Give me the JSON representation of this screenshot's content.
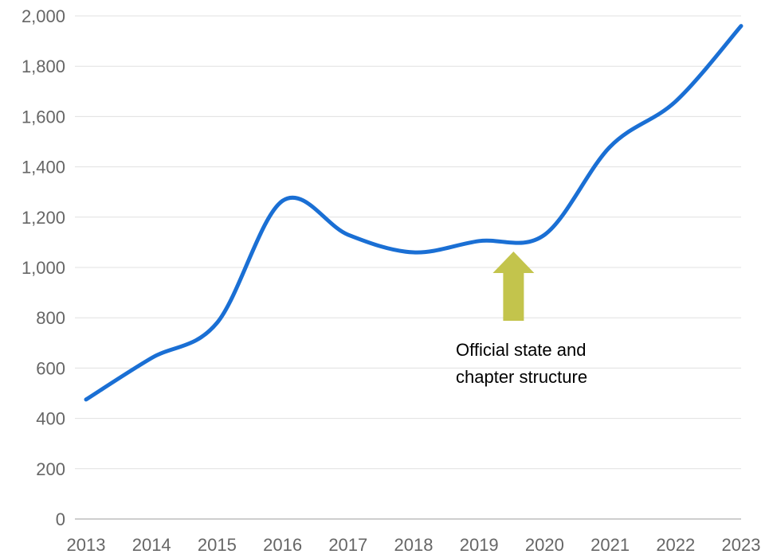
{
  "chart_data": {
    "type": "line",
    "x": [
      "2013",
      "2014",
      "2015",
      "2016",
      "2017",
      "2018",
      "2019",
      "2020",
      "2021",
      "2022",
      "2023"
    ],
    "series": [
      {
        "values": [
          475,
          640,
          780,
          1265,
          1130,
          1060,
          1105,
          1130,
          1480,
          1660,
          1960
        ]
      }
    ],
    "ylim": [
      0,
      2000
    ],
    "yticks": [
      0,
      200,
      400,
      600,
      800,
      1000,
      1200,
      1400,
      1600,
      1800,
      2000
    ],
    "ytick_labels": [
      "0",
      "200",
      "400",
      "600",
      "800",
      "1,000",
      "1,200",
      "1,400",
      "1,600",
      "1,800",
      "2,000"
    ],
    "grid": true,
    "annotation": {
      "x": "2020",
      "lines": [
        "Official state and",
        "chapter structure"
      ]
    },
    "colors": {
      "line": "#1a6fd4",
      "arrow": "#c3c44c",
      "grid": "#e0e0e0",
      "axis": "#bdbdbd"
    }
  }
}
